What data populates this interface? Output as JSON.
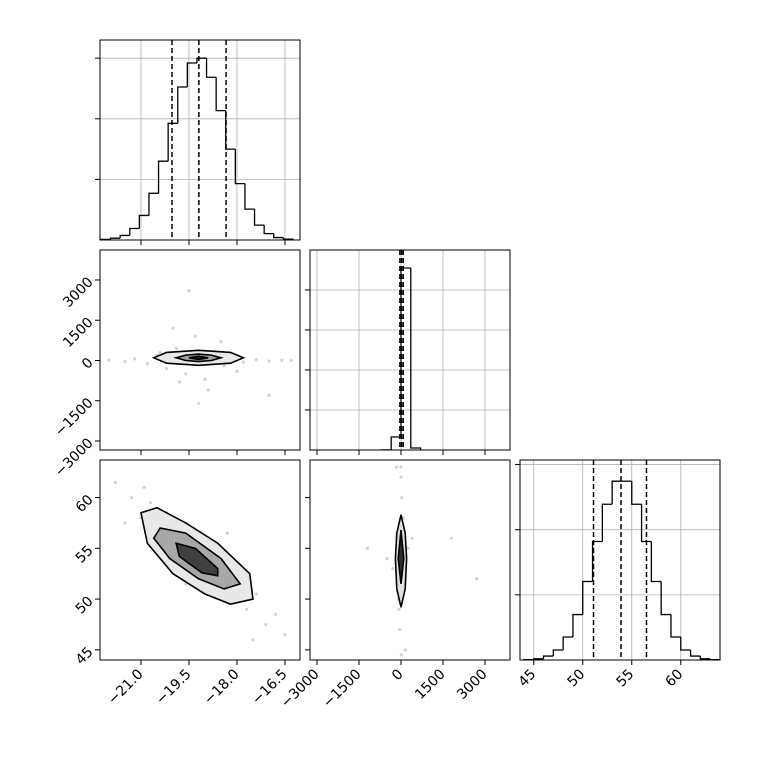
{
  "chart_data": [
    {
      "type": "histogram",
      "color": "#000000",
      "bins": [
        -22.25,
        -21.95,
        -21.65,
        -21.35,
        -21.05,
        -20.75,
        -20.45,
        -20.15,
        -19.85,
        -19.55,
        -19.25,
        -18.95,
        -18.65,
        -18.35,
        -18.05,
        -17.75,
        -17.45,
        -17.15,
        -16.85,
        -16.55,
        -16.25
      ],
      "counts": [
        2,
        6,
        15,
        38,
        81,
        154,
        260,
        385,
        505,
        584,
        600,
        537,
        427,
        300,
        186,
        102,
        49,
        21,
        8,
        3
      ],
      "quantiles": [
        -20.03,
        -19.19,
        -18.34
      ],
      "xlim": [
        -22.28,
        -16.03
      ],
      "xticks": [
        -21,
        -19.5,
        -18,
        -16.5
      ],
      "ylim": [
        0,
        660
      ],
      "yticks": [
        200,
        400,
        600
      ],
      "grid": true,
      "show_xtick_labels": false,
      "show_ytick_labels": false
    },
    {
      "type": "scatter",
      "color": "#808080",
      "x": [
        -22.0,
        -21.5,
        -21.2,
        -20.8,
        -20.5,
        -20.2,
        -19.9,
        -19.6,
        -19.3,
        -19.0,
        -18.7,
        -18.4,
        -18.1,
        -17.8,
        -17.4,
        -17.0,
        -16.6,
        -16.3,
        -20.0,
        -19.5,
        -18.9,
        -19.8,
        -18.5,
        -19.2,
        -18.0,
        -20.4,
        -17.0
      ],
      "y": [
        10,
        -40,
        60,
        -120,
        200,
        -300,
        450,
        -500,
        900,
        -700,
        350,
        -200,
        120,
        -60,
        30,
        -20,
        10,
        0,
        1200,
        2600,
        -1100,
        -800,
        700,
        -1600,
        -400,
        300,
        -1300
      ],
      "contours": [
        {
          "fill": "#e8e8e8",
          "x": [
            -20.6,
            -20.2,
            -19.2,
            -18.2,
            -17.8,
            -18.2,
            -19.2,
            -20.2
          ],
          "y": [
            100,
            300,
            380,
            300,
            100,
            -100,
            -180,
            -100
          ]
        },
        {
          "fill": "#a0a0a0",
          "x": [
            -19.9,
            -19.6,
            -19.2,
            -18.8,
            -18.5,
            -18.8,
            -19.2,
            -19.6
          ],
          "y": [
            100,
            200,
            240,
            200,
            100,
            0,
            -40,
            0
          ]
        },
        {
          "fill": "#202020",
          "x": [
            -19.5,
            -19.2,
            -18.9,
            -19.2
          ],
          "y": [
            100,
            160,
            100,
            40
          ]
        }
      ],
      "xlim": [
        -22.28,
        -16.03
      ],
      "xticks": [
        -21,
        -19.5,
        -18,
        -16.5
      ],
      "ylim": [
        -3335,
        4117
      ],
      "yticks": [
        {
          "value": 3000,
          "label": "3000"
        },
        {
          "value": 1500,
          "label": "1500"
        },
        0,
        {
          "value": -1500,
          "label": "−1500"
        },
        {
          "value": -3000,
          "label": "−3000"
        }
      ],
      "grid": false,
      "show_xtick_labels": false,
      "show_ytick_labels": true
    },
    {
      "type": "histogram",
      "color": "#000000",
      "bins": [
        -700,
        -350,
        0,
        350,
        700
      ],
      "counts": [
        5,
        455,
        6370,
        70
      ],
      "quantiles": [
        -40,
        20,
        80
      ],
      "xlim": [
        -3250,
        3893
      ],
      "xticks": [
        -3000,
        -1500,
        0,
        1500,
        3000
      ],
      "ylim": [
        0,
        7000
      ],
      "yticks": [
        1400,
        2800,
        4200,
        5600
      ],
      "grid": true,
      "show_xtick_labels": false,
      "show_ytick_labels": false
    },
    {
      "type": "scatter",
      "color": "#808080",
      "x": [
        -21.8,
        -21.3,
        -21.0,
        -20.7,
        -20.5,
        -20.2,
        -20.0,
        -19.8,
        -19.5,
        -19.3,
        -19.0,
        -18.8,
        -18.5,
        -18.2,
        -18.0,
        -17.7,
        -17.4,
        -17.1,
        -16.8,
        -16.5,
        -20.9,
        -19.6,
        -18.3,
        -17.5,
        -21.5
      ],
      "y": [
        61.5,
        60.0,
        58.0,
        59.5,
        56.0,
        58.5,
        55.0,
        57.5,
        54.5,
        53.0,
        55.5,
        52.0,
        54.0,
        51.0,
        52.5,
        49.0,
        50.5,
        47.5,
        48.5,
        46.5,
        61.0,
        51.5,
        56.5,
        46.0,
        57.5
      ],
      "contours": [
        {
          "fill": "#e8e8e8",
          "x": [
            -21.0,
            -20.5,
            -19.6,
            -18.6,
            -17.6,
            -17.5,
            -18.2,
            -19.0,
            -20.0,
            -20.8
          ],
          "y": [
            58.5,
            59.0,
            57.5,
            55.5,
            52.5,
            50.0,
            49.5,
            50.5,
            52.5,
            55.5
          ]
        },
        {
          "fill": "#a8a8a8",
          "x": [
            -20.4,
            -19.6,
            -18.5,
            -17.9,
            -18.4,
            -19.2,
            -20.1,
            -20.6
          ],
          "y": [
            57.0,
            56.5,
            54.0,
            51.5,
            51.0,
            52.0,
            54.0,
            56.0
          ]
        },
        {
          "fill": "#404040",
          "x": [
            -19.9,
            -19.3,
            -18.6,
            -18.6,
            -19.1,
            -19.8
          ],
          "y": [
            55.5,
            55.0,
            53.0,
            52.3,
            52.6,
            54.2
          ]
        }
      ],
      "xlim": [
        -22.28,
        -16.03
      ],
      "xticks": [
        {
          "value": -21,
          "label": "−21.0"
        },
        {
          "value": -19.5,
          "label": "−19.5"
        },
        {
          "value": -18,
          "label": "−18.0"
        },
        {
          "value": -16.5,
          "label": "−16.5"
        }
      ],
      "ylim": [
        44,
        63.7
      ],
      "yticks": [
        60,
        55,
        50,
        45
      ],
      "grid": false,
      "show_xtick_labels": true,
      "show_ytick_labels": true
    },
    {
      "type": "scatter",
      "color": "#808080",
      "x": [
        0,
        30,
        -40,
        80,
        -90,
        150,
        -160,
        20,
        -20,
        60,
        -70,
        -300,
        250,
        2700,
        1800,
        -1200,
        10,
        -5,
        40,
        -30,
        100,
        -500,
        400
      ],
      "y": [
        62,
        60,
        47,
        58,
        50,
        45,
        63,
        55,
        52,
        57,
        49,
        53,
        55,
        52,
        56,
        55,
        44.5,
        63,
        54,
        53,
        51,
        54,
        56
      ],
      "contours": [
        {
          "fill": "#e0e0e0",
          "x": [
            0,
            150,
            200,
            150,
            0,
            -150,
            -200,
            -150
          ],
          "y": [
            58.3,
            56.5,
            54,
            51,
            49.2,
            51,
            54,
            56.5
          ]
        },
        {
          "fill": "#303030",
          "x": [
            0,
            100,
            0,
            -100
          ],
          "y": [
            56.8,
            54,
            51.5,
            54
          ]
        }
      ],
      "xlim": [
        -3250,
        3893
      ],
      "xticks": [
        {
          "value": -3000,
          "label": "−3000"
        },
        {
          "value": -1500,
          "label": "−1500"
        },
        0,
        1500,
        3000
      ],
      "ylim": [
        44,
        63.7
      ],
      "yticks": [
        60,
        55,
        50,
        45
      ],
      "grid": false,
      "show_xtick_labels": true,
      "show_ytick_labels": false
    },
    {
      "type": "histogram",
      "color": "#000000",
      "bins": [
        44,
        45,
        46,
        47,
        48,
        49,
        50,
        51,
        52,
        53,
        54,
        55,
        56,
        57,
        58,
        59,
        60,
        61,
        62,
        63,
        64
      ],
      "counts": [
        1,
        4,
        13,
        33,
        76,
        150,
        259,
        391,
        514,
        590,
        590,
        514,
        391,
        259,
        150,
        76,
        33,
        13,
        4,
        1
      ],
      "quantiles": [
        51.1,
        53.9,
        56.5
      ],
      "xlim": [
        43.6,
        64.0
      ],
      "xticks": [
        45,
        50,
        55,
        60
      ],
      "ylim": [
        0,
        660
      ],
      "yticks": [
        215,
        430,
        645
      ],
      "grid": true,
      "show_xtick_labels": true,
      "show_ytick_labels": false
    }
  ]
}
